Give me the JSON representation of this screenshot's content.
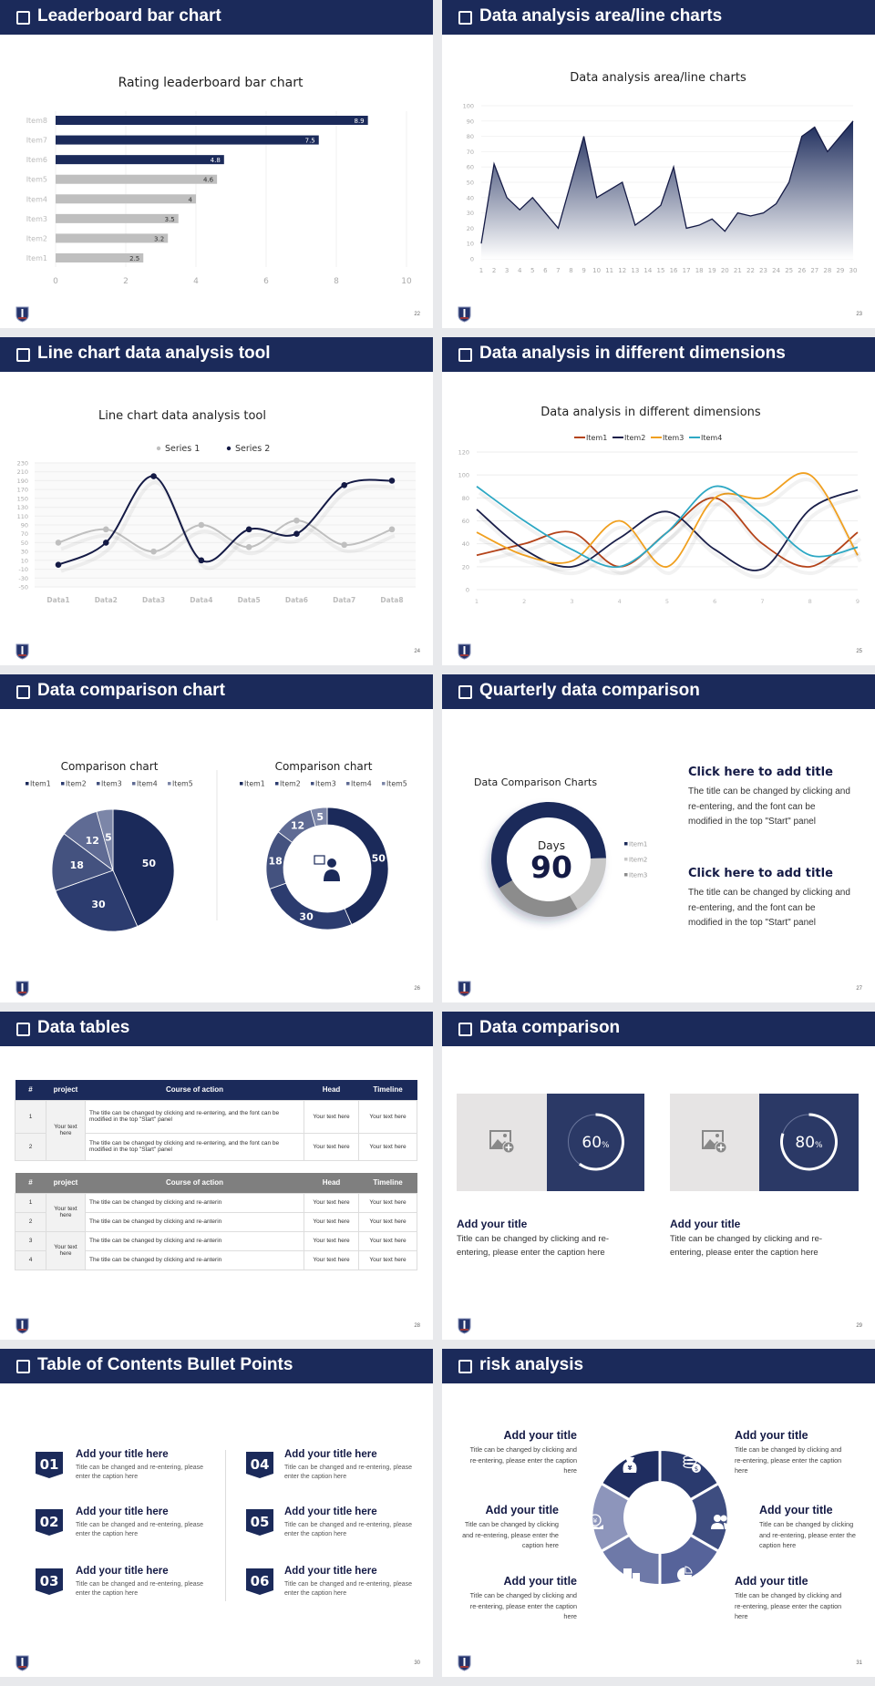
{
  "slides": [
    {
      "title": "Leaderboard bar chart",
      "page": "22"
    },
    {
      "title": "Data analysis area/line charts",
      "page": "23"
    },
    {
      "title": "Line chart data analysis tool",
      "page": "24"
    },
    {
      "title": "Data analysis in different dimensions",
      "page": "25"
    },
    {
      "title": "Data comparison chart",
      "page": "26"
    },
    {
      "title": "Quarterly data comparison",
      "page": "27"
    },
    {
      "title": "Data tables",
      "page": "28"
    },
    {
      "title": "Data comparison",
      "page": "29"
    },
    {
      "title": "Table of Contents Bullet Points",
      "page": "30"
    },
    {
      "title": "risk analysis",
      "page": "31"
    }
  ],
  "colors": {
    "navy": "#1b2a5a",
    "gray_bar": "#bfbfbf",
    "card_navy": "#2b3966",
    "card_gray": "#e6e4e4"
  },
  "chart_data": [
    {
      "type": "bar",
      "orientation": "horizontal",
      "title": "Rating leaderboard bar chart",
      "categories": [
        "Item1",
        "Item2",
        "Item3",
        "Item4",
        "Item5",
        "Item6",
        "Item7",
        "Item8"
      ],
      "values": [
        2.5,
        3.2,
        3.5,
        4,
        4.6,
        4.8,
        7.5,
        8.9
      ],
      "bar_colors": [
        "#bfbfbf",
        "#bfbfbf",
        "#bfbfbf",
        "#bfbfbf",
        "#bfbfbf",
        "#1b2a5a",
        "#1b2a5a",
        "#1b2a5a"
      ],
      "xlim": [
        0,
        10
      ],
      "xticks": [
        0,
        2,
        4,
        6,
        8,
        10
      ],
      "grid": true,
      "data_labels": true
    },
    {
      "type": "area",
      "title": "Data analysis area/line charts",
      "x": [
        1,
        2,
        3,
        4,
        5,
        6,
        7,
        8,
        9,
        10,
        11,
        12,
        13,
        14,
        15,
        16,
        17,
        18,
        19,
        20,
        21,
        22,
        23,
        24,
        25,
        26,
        27,
        28,
        29,
        30
      ],
      "values": [
        10,
        62,
        40,
        32,
        40,
        30,
        20,
        50,
        80,
        40,
        45,
        50,
        22,
        28,
        35,
        60,
        20,
        22,
        26,
        18,
        30,
        28,
        30,
        36,
        50,
        80,
        86,
        70,
        80,
        90
      ],
      "ylim": [
        0,
        100
      ],
      "yticks": [
        0,
        10,
        20,
        30,
        40,
        50,
        60,
        70,
        80,
        90,
        100
      ],
      "grid": true,
      "color": "#1b2a5a"
    },
    {
      "type": "line",
      "title": "Line chart data analysis tool",
      "smooth": true,
      "legend": "top",
      "categories": [
        "Data1",
        "Data2",
        "Data3",
        "Data4",
        "Data5",
        "Data6",
        "Data7",
        "Data8"
      ],
      "series": [
        {
          "name": "Series 1",
          "values": [
            50,
            80,
            30,
            90,
            40,
            100,
            45,
            80
          ],
          "color": "#bfbfbf"
        },
        {
          "name": "Series 2",
          "values": [
            0,
            50,
            200,
            10,
            80,
            70,
            180,
            190
          ],
          "color": "#141a45"
        }
      ],
      "ylim": [
        -50,
        230
      ],
      "yticks": [
        -50,
        -30,
        -10,
        10,
        30,
        50,
        70,
        90,
        110,
        130,
        150,
        170,
        190,
        210,
        230
      ],
      "grid": true
    },
    {
      "type": "line",
      "title": "Data analysis in different dimensions",
      "smooth": true,
      "legend": "top",
      "categories": [
        "1",
        "2",
        "3",
        "4",
        "5",
        "6",
        "7",
        "8",
        "9"
      ],
      "series": [
        {
          "name": "Item1",
          "values": [
            30,
            40,
            50,
            20,
            50,
            80,
            40,
            20,
            50
          ],
          "color": "#b5441a"
        },
        {
          "name": "Item2",
          "values": [
            70,
            35,
            20,
            45,
            68,
            35,
            18,
            70,
            87
          ],
          "color": "#1a1f4a"
        },
        {
          "name": "Item3",
          "values": [
            50,
            30,
            25,
            60,
            20,
            80,
            80,
            100,
            30
          ],
          "color": "#f0a020"
        },
        {
          "name": "Item4",
          "values": [
            90,
            60,
            35,
            20,
            50,
            90,
            65,
            30,
            37
          ],
          "color": "#2ea8c4"
        }
      ],
      "ylim": [
        0,
        120
      ],
      "yticks": [
        0,
        20,
        40,
        60,
        80,
        100,
        120
      ],
      "grid": true
    },
    {
      "type": "pie",
      "title": "Comparison chart",
      "legend": "top",
      "categories": [
        "Item1",
        "Item2",
        "Item3",
        "Item4",
        "Item5"
      ],
      "values": [
        50,
        30,
        18,
        12,
        5
      ],
      "colors": [
        "#1b2a5a",
        "#2c3c6f",
        "#44527f",
        "#5f6b94",
        "#7c86a8"
      ]
    },
    {
      "type": "pie",
      "variant": "donut",
      "title": "Comparison chart",
      "legend": "top",
      "categories": [
        "Item1",
        "Item2",
        "Item3",
        "Item4",
        "Item5"
      ],
      "values": [
        50,
        30,
        18,
        12,
        5
      ],
      "colors": [
        "#1b2a5a",
        "#2c3c6f",
        "#44527f",
        "#5f6b94",
        "#7c86a8"
      ],
      "center_icon": "presenter-icon"
    },
    {
      "type": "pie",
      "variant": "donut",
      "title": "Data Comparison Charts",
      "legend": "right",
      "categories": [
        "Item1",
        "Item2",
        "Item3"
      ],
      "values": [
        58,
        17,
        25
      ],
      "colors": [
        "#1b2a5a",
        "#c8c8c8",
        "#8c8c8c"
      ],
      "center_label": "Days",
      "center_value": "90"
    }
  ],
  "quarterly": {
    "blocks": [
      {
        "title": "Click here to add title",
        "body": "The title can be changed by clicking and re-entering, and the font can be modified in the top \"Start\" panel"
      },
      {
        "title": "Click here to add title",
        "body": "The title can be changed by clicking and re-entering, and the font can be modified in the top \"Start\" panel"
      }
    ]
  },
  "tables": {
    "headers": [
      "#",
      "project",
      "Course of action",
      "Head",
      "Timeline"
    ],
    "table1": {
      "header_color": "#1b2a5a",
      "project": "Your text here",
      "rows": [
        {
          "num": "1",
          "action": " The title can be changed by clicking and re-entering, and the font can be modified in the top \"Start\" panel",
          "head": "Your text here",
          "timeline": "Your text here"
        },
        {
          "num": "2",
          "action": "The title can be changed by clicking and re-entering, and the font can be modified in the top \"Start\" panel",
          "head": "Your text here",
          "timeline": "Your text here"
        }
      ]
    },
    "table2": {
      "header_color": "#7f7f7f",
      "projects": [
        "Your text here",
        "Your text here"
      ],
      "rows": [
        {
          "num": "1",
          "action": "The title can be changed by clicking and re-anterin",
          "head": "Your text here",
          "timeline": "Your text here"
        },
        {
          "num": "2",
          "action": "The title can be changed by clicking and re-anterin",
          "head": "Your text here",
          "timeline": "Your text here"
        },
        {
          "num": "3",
          "action": "The title can be changed by clicking and re-anterin",
          "head": "Your text here",
          "timeline": "Your text here"
        },
        {
          "num": "4",
          "action": "The title can be changed by clicking and re-anterin",
          "head": "Your text here",
          "timeline": "Your text here"
        }
      ]
    }
  },
  "comparison": {
    "cards": [
      {
        "percent": 60,
        "percent_label": "60",
        "unit": "%",
        "title": "Add your title",
        "body": "Title can be changed by clicking and re-entering, please enter the caption here",
        "image_icon": "image-add-icon"
      },
      {
        "percent": 80,
        "percent_label": "80",
        "unit": "%",
        "title": "Add your title",
        "body": "Title can be changed by clicking and re-entering, please enter the caption here",
        "image_icon": "image-add-icon"
      }
    ]
  },
  "toc": {
    "items": [
      {
        "num": "01",
        "title": "Add your title here",
        "body": "Title can be changed and re-entering, please enter the caption here"
      },
      {
        "num": "02",
        "title": "Add your title here",
        "body": "Title can be changed and re-entering, please enter the caption here"
      },
      {
        "num": "03",
        "title": "Add your title here",
        "body": "Title can be changed and re-entering, please enter the caption here"
      },
      {
        "num": "04",
        "title": "Add your title here",
        "body": "Title can be changed and re-entering, please enter the caption here"
      },
      {
        "num": "05",
        "title": "Add your title here",
        "body": "Title can be changed and re-entering, please enter the caption here"
      },
      {
        "num": "06",
        "title": "Add your title here",
        "body": "Title can be changed and re-entering, please enter the caption here"
      }
    ]
  },
  "risk": {
    "items": [
      {
        "title": "Add your title",
        "body": "Title can be changed by clicking and re-entering, please enter the caption here"
      },
      {
        "title": "Add your title",
        "body": "Title can be changed by clicking and re-entering, please enter the caption here"
      },
      {
        "title": "Add your title",
        "body": "Title can be changed by clicking and re-entering, please enter the caption here"
      },
      {
        "title": "Add your title",
        "body": "Title can be changed by clicking and re-entering, please enter the caption here"
      },
      {
        "title": "Add your title",
        "body": "Title can be changed by clicking and re-entering, please enter the caption here"
      },
      {
        "title": "Add your title",
        "body": "Title can be changed by clicking and re-entering, please enter the caption here"
      }
    ],
    "segment_icons": [
      "money-bag-icon",
      "coins-icon",
      "people-icon",
      "pie-chart-icon",
      "building-icon",
      "yen-hand-icon"
    ],
    "segment_colors": [
      "#1f2d60",
      "#2a3a6e",
      "#3e4d80",
      "#56639a",
      "#6e79a8",
      "#8d95bb"
    ]
  }
}
